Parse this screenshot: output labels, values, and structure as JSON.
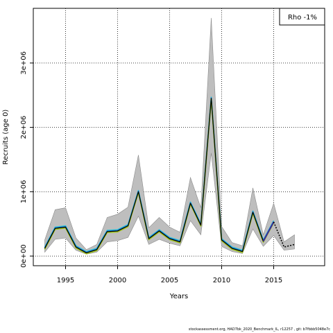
{
  "chart_data": {
    "type": "line",
    "xlabel": "Years",
    "ylabel": "Recruits (age 0)",
    "xlim": [
      1991.9,
      2019.9
    ],
    "ylim": [
      -150000,
      3850000
    ],
    "xticks": [
      1995,
      2000,
      2005,
      2010,
      2015
    ],
    "yticks": [
      0,
      1000000,
      2000000,
      3000000
    ],
    "ytick_labels": [
      "0e+00",
      "1e+06",
      "2e+06",
      "3e+06"
    ],
    "grid": true,
    "legend": {
      "text": "Rho -1%",
      "placement": "top-right"
    },
    "colors": {
      "band": "#bebebe",
      "base_series": "#000000",
      "retro_lines": [
        "#24c3d6",
        "#1b6fd1",
        "#1a9e4b",
        "#a0c41f",
        "#3a2a9a"
      ],
      "projection": "#000000"
    },
    "confidence_band": {
      "x": [
        1993,
        1994,
        1995,
        1996,
        1997,
        1998,
        1999,
        2000,
        2001,
        2002,
        2003,
        2004,
        2005,
        2006,
        2007,
        2008,
        2009,
        2010,
        2011,
        2012,
        2013,
        2014,
        2015,
        2016,
        2017
      ],
      "upper": [
        250000,
        720000,
        750000,
        280000,
        100000,
        180000,
        600000,
        650000,
        760000,
        1570000,
        440000,
        600000,
        450000,
        370000,
        1220000,
        750000,
        3700000,
        460000,
        210000,
        160000,
        1060000,
        330000,
        820000,
        220000,
        330000
      ],
      "lower": [
        60000,
        260000,
        280000,
        90000,
        30000,
        60000,
        220000,
        240000,
        290000,
        620000,
        180000,
        260000,
        200000,
        160000,
        550000,
        330000,
        1600000,
        150000,
        70000,
        40000,
        420000,
        150000,
        320000,
        90000,
        110000
      ]
    },
    "series": [
      {
        "x": [
          1993,
          1994,
          1995,
          1996,
          1997,
          1998,
          1999,
          2000,
          2001,
          2002,
          2003,
          2004,
          2005,
          2006,
          2007,
          2008,
          2009,
          2010,
          2011,
          2012,
          2013,
          2014,
          2015
        ],
        "values": [
          120000,
          430000,
          450000,
          140000,
          50000,
          100000,
          380000,
          390000,
          470000,
          1000000,
          270000,
          390000,
          270000,
          220000,
          820000,
          480000,
          2450000,
          250000,
          120000,
          70000,
          680000,
          230000,
          530000
        ]
      },
      {
        "x": [
          2015,
          2016,
          2017
        ],
        "values": [
          530000,
          140000,
          180000
        ]
      }
    ]
  },
  "footer": "stockassessment.org, HAD7bk_2020_Benchmark_IL, r12257 , git: b7fbbb5048e7c"
}
